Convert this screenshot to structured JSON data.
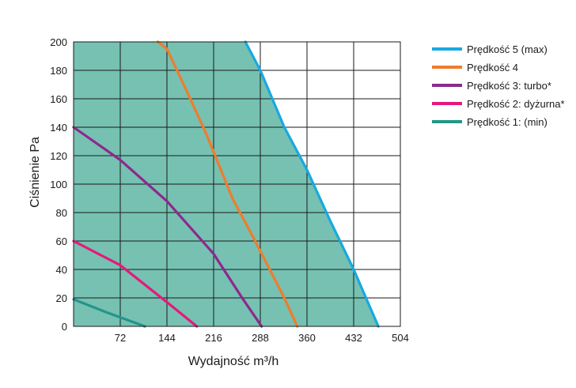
{
  "chart_data": {
    "type": "line",
    "title": "",
    "xlabel": "Wydajność m³/h",
    "ylabel": "Ciśnienie Pa",
    "xlim": [
      0,
      504
    ],
    "ylim": [
      0,
      200
    ],
    "x_ticks": [
      72,
      144,
      216,
      288,
      360,
      432,
      504
    ],
    "y_ticks": [
      0,
      20,
      40,
      60,
      80,
      100,
      120,
      140,
      160,
      180,
      200
    ],
    "grid": true,
    "legend_position": "right",
    "fill_under_series": "Prędkość 5 (max)",
    "fill_color": "#76c1b2",
    "series": [
      {
        "name": "Prędkość 5 (max)",
        "color": "#17a9e1",
        "points": [
          [
            265,
            200
          ],
          [
            288,
            180
          ],
          [
            325,
            140
          ],
          [
            360,
            110
          ],
          [
            395,
            75
          ],
          [
            432,
            40
          ],
          [
            470,
            0
          ]
        ]
      },
      {
        "name": "Prędkość 4",
        "color": "#ee7d2d",
        "points": [
          [
            130,
            200
          ],
          [
            144,
            195
          ],
          [
            175,
            165
          ],
          [
            205,
            135
          ],
          [
            245,
            90
          ],
          [
            280,
            60
          ],
          [
            325,
            20
          ],
          [
            345,
            0
          ]
        ]
      },
      {
        "name": "Prędkość 3: turbo*",
        "color": "#8c2a8c",
        "points": [
          [
            0,
            140
          ],
          [
            72,
            117
          ],
          [
            144,
            88
          ],
          [
            216,
            51
          ],
          [
            260,
            20
          ],
          [
            290,
            0
          ]
        ]
      },
      {
        "name": "Prędkość 2: dyżurna*",
        "color": "#e5197a",
        "points": [
          [
            0,
            60
          ],
          [
            72,
            43
          ],
          [
            144,
            17
          ],
          [
            190,
            0
          ]
        ]
      },
      {
        "name": "Prędkość 1: (min)",
        "color": "#23968a",
        "points": [
          [
            0,
            19
          ],
          [
            50,
            10
          ],
          [
            110,
            0
          ]
        ]
      }
    ]
  }
}
